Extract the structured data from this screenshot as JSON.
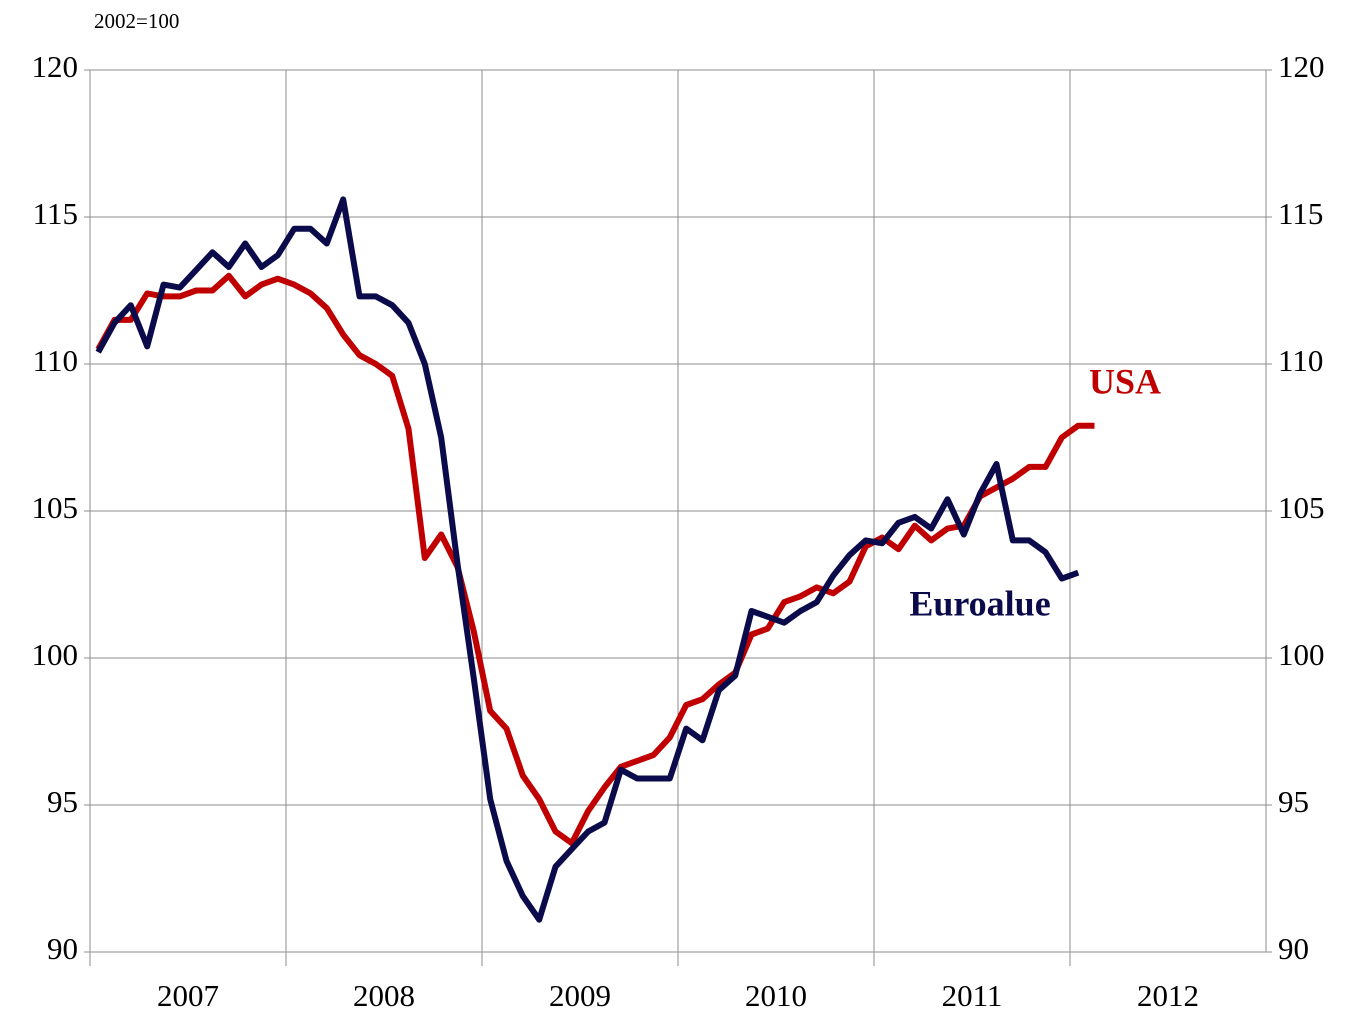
{
  "chart_data": {
    "type": "line",
    "subtitle": "2002=100",
    "xlim": [
      2007,
      2013
    ],
    "xticks": [
      2007,
      2008,
      2009,
      2010,
      2011,
      2012
    ],
    "ylim": [
      90,
      120
    ],
    "yticks": [
      90,
      95,
      100,
      105,
      110,
      115,
      120
    ],
    "y2lim": [
      90,
      120
    ],
    "y2ticks": [
      90,
      95,
      100,
      105,
      110,
      115,
      120
    ],
    "grid": true,
    "series": [
      {
        "name": "USA",
        "color": "#c00000",
        "x": [
          2007.042,
          2007.125,
          2007.208,
          2007.292,
          2007.375,
          2007.458,
          2007.542,
          2007.625,
          2007.708,
          2007.792,
          2007.875,
          2007.958,
          2008.042,
          2008.125,
          2008.208,
          2008.292,
          2008.375,
          2008.458,
          2008.542,
          2008.625,
          2008.708,
          2008.792,
          2008.875,
          2008.958,
          2009.042,
          2009.125,
          2009.208,
          2009.292,
          2009.375,
          2009.458,
          2009.542,
          2009.625,
          2009.708,
          2009.792,
          2009.875,
          2009.958,
          2010.042,
          2010.125,
          2010.208,
          2010.292,
          2010.375,
          2010.458,
          2010.542,
          2010.625,
          2010.708,
          2010.792,
          2010.875,
          2010.958,
          2011.042,
          2011.125,
          2011.208,
          2011.292,
          2011.375,
          2011.458,
          2011.542,
          2011.625,
          2011.708,
          2011.792,
          2011.875,
          2011.958,
          2012.042,
          2012.125
        ],
        "values": [
          110.5,
          111.5,
          111.5,
          112.4,
          112.3,
          112.3,
          112.5,
          112.5,
          113.0,
          112.3,
          112.7,
          112.9,
          112.7,
          112.4,
          111.9,
          111.0,
          110.3,
          110.0,
          109.6,
          107.8,
          103.4,
          104.2,
          103.1,
          100.9,
          98.2,
          97.6,
          96.0,
          95.2,
          94.1,
          93.7,
          94.8,
          95.6,
          96.3,
          96.5,
          96.7,
          97.3,
          98.4,
          98.6,
          99.1,
          99.5,
          100.8,
          101.0,
          101.9,
          102.1,
          102.4,
          102.2,
          102.6,
          103.8,
          104.1,
          103.7,
          104.5,
          104.0,
          104.4,
          104.5,
          105.5,
          105.8,
          106.1,
          106.5,
          106.5,
          107.5,
          107.9,
          107.9
        ]
      },
      {
        "name": "Euroalue",
        "color": "#0b0b4b",
        "x": [
          2007.042,
          2007.125,
          2007.208,
          2007.292,
          2007.375,
          2007.458,
          2007.542,
          2007.625,
          2007.708,
          2007.792,
          2007.875,
          2007.958,
          2008.042,
          2008.125,
          2008.208,
          2008.292,
          2008.375,
          2008.458,
          2008.542,
          2008.625,
          2008.708,
          2008.792,
          2008.875,
          2008.958,
          2009.042,
          2009.125,
          2009.208,
          2009.292,
          2009.375,
          2009.458,
          2009.542,
          2009.625,
          2009.708,
          2009.792,
          2009.875,
          2009.958,
          2010.042,
          2010.125,
          2010.208,
          2010.292,
          2010.375,
          2010.458,
          2010.542,
          2010.625,
          2010.708,
          2010.792,
          2010.875,
          2010.958,
          2011.042,
          2011.125,
          2011.208,
          2011.292,
          2011.375,
          2011.458,
          2011.542,
          2011.625,
          2011.708,
          2011.792,
          2011.875,
          2011.958,
          2012.042
        ],
        "values": [
          110.4,
          111.4,
          112.0,
          110.6,
          112.7,
          112.6,
          113.2,
          113.8,
          113.3,
          114.1,
          113.3,
          113.7,
          114.6,
          114.6,
          114.1,
          115.6,
          112.3,
          112.3,
          112.0,
          111.4,
          110.0,
          107.5,
          103.2,
          99.3,
          95.2,
          93.1,
          91.9,
          91.1,
          92.9,
          93.5,
          94.1,
          94.4,
          96.2,
          95.9,
          95.9,
          95.9,
          97.6,
          97.2,
          98.9,
          99.4,
          101.6,
          101.4,
          101.2,
          101.6,
          101.9,
          102.8,
          103.5,
          104.0,
          103.9,
          104.6,
          104.8,
          104.4,
          105.4,
          104.2,
          105.6,
          106.6,
          104.0,
          104.0,
          103.6,
          102.7,
          102.9
        ]
      }
    ]
  }
}
